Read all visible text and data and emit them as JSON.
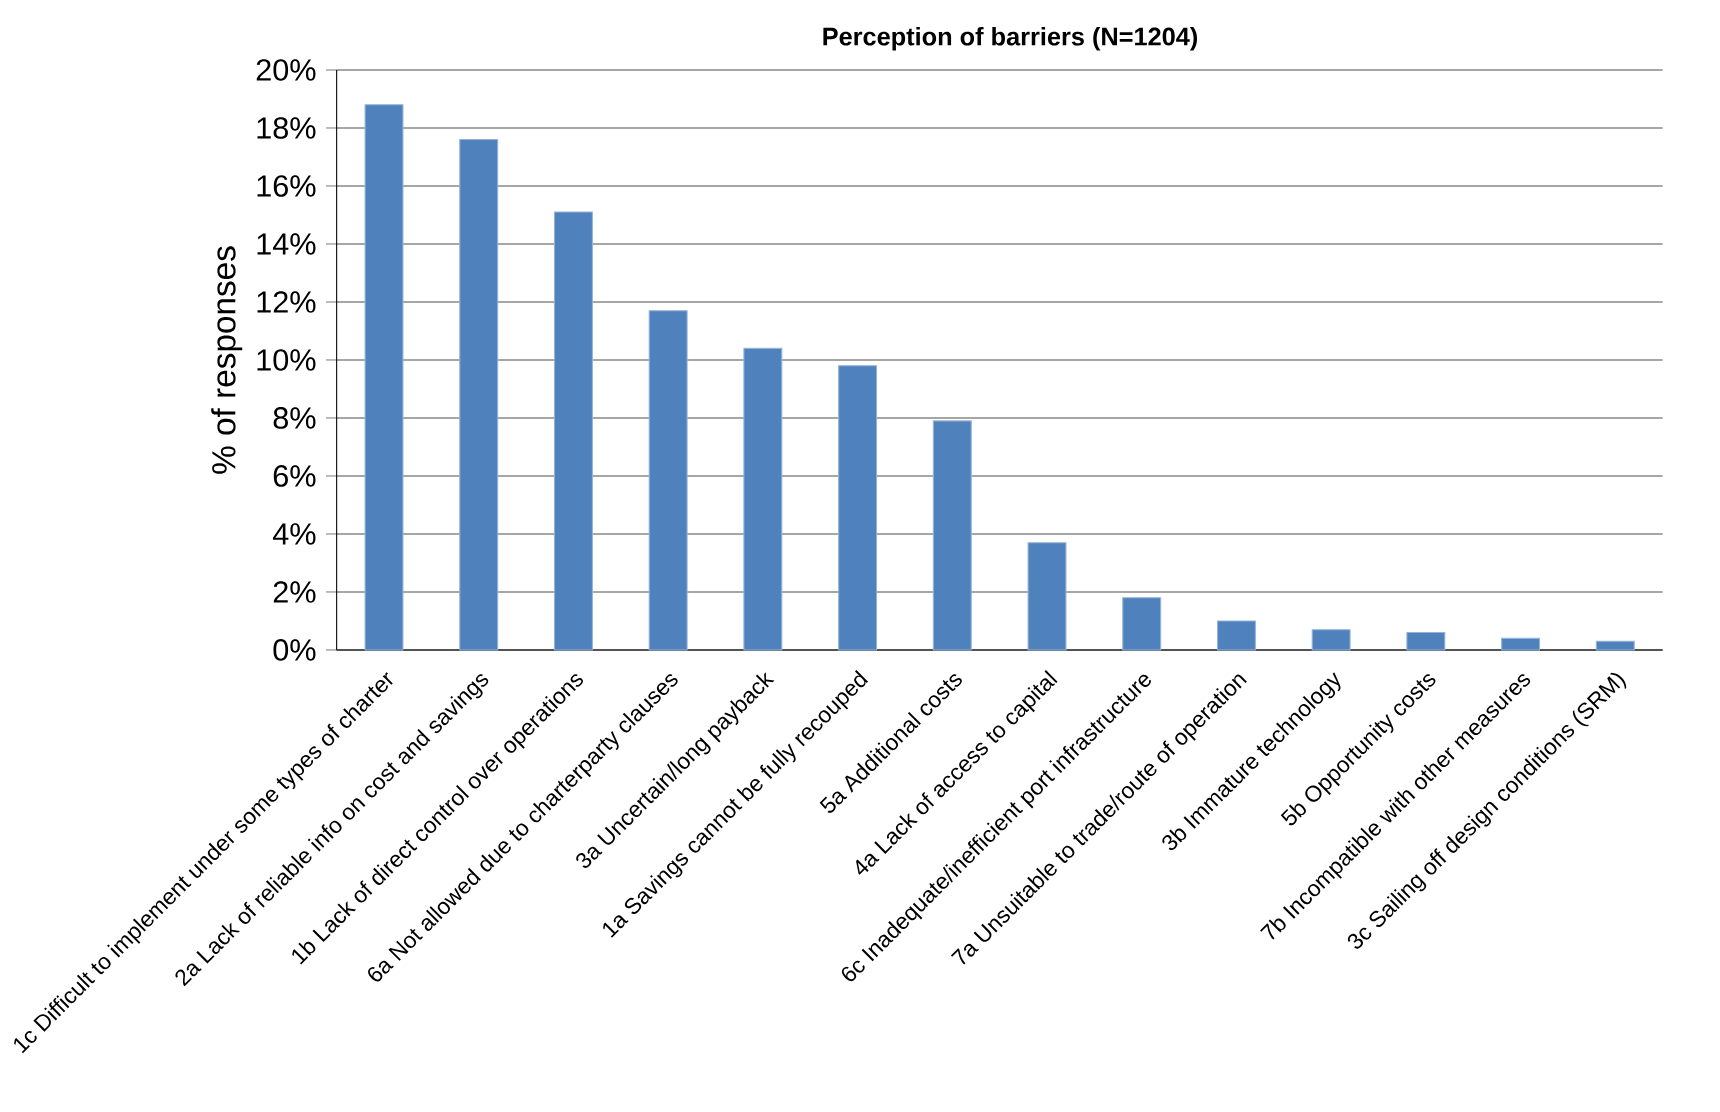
{
  "chart_data": {
    "type": "bar",
    "title": "Perception of barriers (N=1204)",
    "ylabel": "% of responses",
    "categories": [
      "1c Difficult to implement under some types of charter",
      "2a Lack of reliable info on cost and savings",
      "1b Lack of direct control over operations",
      "6a Not allowed due to charterparty clauses",
      "3a Uncertain/long payback",
      "1a Savings cannot be fully recouped",
      "5a Additional costs",
      "4a Lack of access to capital",
      "6c Inadequate/inefficient port infrastructure",
      "7a Unsuitable to trade/route of operation",
      "3b Immature technology",
      "5b Opportunity costs",
      "7b Incompatible with other measures",
      "3c Sailing off design conditions (SRM)"
    ],
    "values": [
      18.8,
      17.6,
      15.1,
      11.7,
      10.4,
      9.8,
      7.9,
      3.7,
      1.8,
      1.0,
      0.7,
      0.6,
      0.4,
      0.3
    ],
    "color": "#4f81bd",
    "ylim": [
      0,
      20
    ],
    "yticks": [
      {
        "value": 0,
        "label": "0%"
      },
      {
        "value": 2,
        "label": "2%"
      },
      {
        "value": 4,
        "label": "4%"
      },
      {
        "value": 6,
        "label": "6%"
      },
      {
        "value": 8,
        "label": "8%"
      },
      {
        "value": 10,
        "label": "10%"
      },
      {
        "value": 12,
        "label": "12%"
      },
      {
        "value": 14,
        "label": "14%"
      },
      {
        "value": 16,
        "label": "16%"
      },
      {
        "value": 18,
        "label": "18%"
      },
      {
        "value": 20,
        "label": "20%"
      }
    ],
    "grid": "y"
  }
}
